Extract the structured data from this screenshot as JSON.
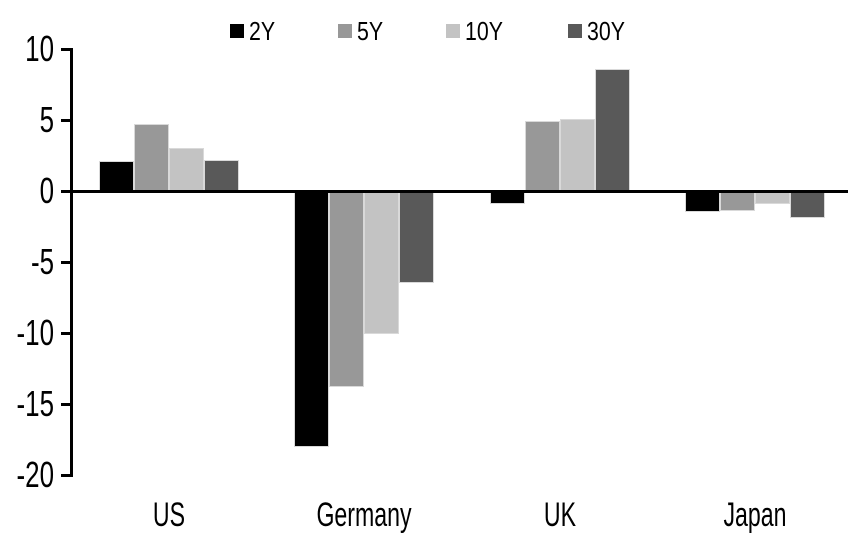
{
  "chart_data": {
    "type": "bar",
    "title": "",
    "xlabel": "",
    "ylabel": "",
    "categories": [
      "US",
      "Germany",
      "UK",
      "Japan"
    ],
    "series": [
      {
        "name": "2Y",
        "color": "#000000",
        "values": [
          2.1,
          -18.0,
          -0.9,
          -1.5
        ]
      },
      {
        "name": "5Y",
        "color": "#989898",
        "values": [
          4.7,
          -13.8,
          4.9,
          -1.4
        ]
      },
      {
        "name": "10Y",
        "color": "#c3c3c3",
        "values": [
          3.0,
          -10.1,
          5.1,
          -0.9
        ]
      },
      {
        "name": "30Y",
        "color": "#595959",
        "values": [
          2.2,
          -6.5,
          8.6,
          -1.9
        ]
      }
    ],
    "ylim": [
      -20,
      10
    ],
    "yticks": [
      10,
      5,
      0,
      -5,
      -10,
      -15,
      -20
    ],
    "legend_position": "top-center",
    "grid": false,
    "axis_color": "#000000",
    "bar_border_color": "#d9d9d9",
    "background_color": "#ffffff"
  }
}
